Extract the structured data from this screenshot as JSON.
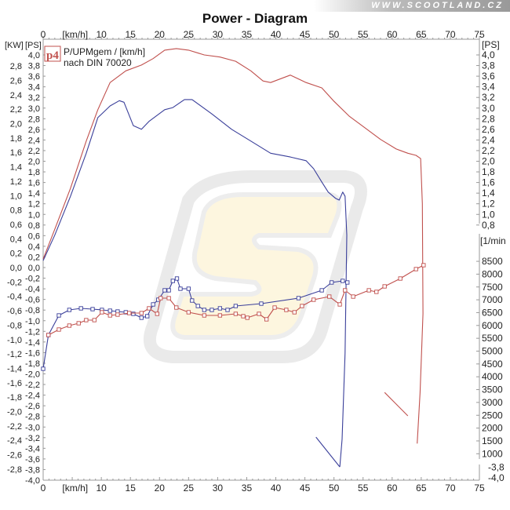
{
  "banner": {
    "text": "WWW.SCOOTLAND.CZ"
  },
  "chart_data": {
    "type": "line",
    "title": "Power - Diagram",
    "legend": {
      "badge": "p4",
      "line1": "P/UPMgem / [km/h]",
      "line2": "nach DIN 70020",
      "placement": "top-left"
    },
    "x_axis": {
      "label": "[km/h]",
      "min": 0,
      "max": 75,
      "tick_labels": [
        "0",
        "10",
        "15",
        "20",
        "25",
        "30",
        "35",
        "40",
        "45",
        "50",
        "55",
        "60",
        "65",
        "70",
        "75"
      ]
    },
    "y_axes": {
      "kw_left": {
        "label": "[KW]",
        "min": -2.8,
        "max": 2.8,
        "step": 0.2
      },
      "ps_left": {
        "label": "[PS]",
        "min": -4.0,
        "max": 4.0,
        "step": 0.2
      },
      "ps_right": {
        "label": "[PS]",
        "upper_ticks": [
          "4,0",
          "3,8",
          "3,6",
          "3,4",
          "3,2",
          "3,0",
          "2,8",
          "2,6",
          "2,4",
          "2,2",
          "2,0",
          "1,8",
          "1,6",
          "1,4",
          "1,2",
          "1,0",
          "0,8"
        ],
        "lower_ticks": [
          "-3,8",
          "-4,0"
        ]
      },
      "rpm_right": {
        "label": "[1/min",
        "min": 1000,
        "max": 8500,
        "ticks": [
          8500,
          8000,
          7500,
          7000,
          6500,
          6000,
          5500,
          5000,
          4500,
          4000,
          3500,
          3000,
          2500,
          2000,
          1500,
          1000
        ]
      }
    },
    "series": [
      {
        "name": "power-red",
        "axis": "ps",
        "color": "#c0504d",
        "x": [
          0,
          2.0,
          4.7,
          7.4,
          9.4,
          11.5,
          14.2,
          16.9,
          18.9,
          20.9,
          22.9,
          25.0,
          27.7,
          30.4,
          33.1,
          35.7,
          37.8,
          39.1,
          42.5,
          45.2,
          47.9,
          49.9,
          52.6,
          55.3,
          58.0,
          60.7,
          62.7,
          64.1,
          64.9,
          65.2,
          65.3,
          64.8,
          64.3
        ],
        "y": [
          0.16,
          0.72,
          1.49,
          2.38,
          2.97,
          3.48,
          3.7,
          3.81,
          3.93,
          4.09,
          4.12,
          4.09,
          4.0,
          3.96,
          3.88,
          3.7,
          3.51,
          3.48,
          3.62,
          3.48,
          3.38,
          3.14,
          2.85,
          2.63,
          2.41,
          2.23,
          2.15,
          2.11,
          2.05,
          1.2,
          -0.87,
          -2.35,
          -3.31
        ]
      },
      {
        "name": "power-red-rundown",
        "axis": "ps",
        "color": "#c0504d",
        "x": [
          62.7,
          58.7
        ],
        "y": [
          -2.79,
          -2.35
        ]
      },
      {
        "name": "power-blue",
        "axis": "ps",
        "color": "#3a3f9a",
        "x": [
          0,
          2.0,
          4.7,
          7.4,
          9.4,
          11.5,
          13.1,
          13.9,
          15.5,
          16.9,
          18.2,
          20.9,
          22.3,
          24.3,
          25.6,
          29.0,
          32.4,
          35.7,
          39.1,
          42.5,
          45.2,
          46.5,
          47.9,
          49.0,
          50.3,
          50.9,
          51.5,
          51.9,
          52.2,
          51.9,
          51.4,
          51.0
        ],
        "y": [
          0.13,
          0.61,
          1.34,
          2.15,
          2.82,
          3.04,
          3.14,
          3.11,
          2.67,
          2.6,
          2.75,
          2.97,
          3.01,
          3.16,
          3.16,
          2.89,
          2.6,
          2.38,
          2.15,
          2.08,
          2.01,
          1.86,
          1.61,
          1.42,
          1.3,
          1.27,
          1.42,
          1.34,
          0.61,
          -1.61,
          -3.23,
          -3.75
        ]
      },
      {
        "name": "power-blue-rundown",
        "axis": "ps",
        "color": "#3a3f9a",
        "x": [
          51.0,
          46.9
        ],
        "y": [
          -3.75,
          -3.19
        ]
      },
      {
        "name": "rpm-blue",
        "axis": "rpm",
        "color": "#3a3f9a",
        "markers": "square",
        "x": [
          0,
          0.9,
          2.7,
          4.5,
          6.5,
          8.5,
          10.1,
          11.5,
          12.8,
          14.2,
          15.5,
          16.9,
          17.9,
          18.9,
          19.8,
          20.9,
          21.6,
          22.3,
          23.0,
          23.6,
          25.0,
          25.6,
          26.6,
          27.7,
          29.0,
          30.4,
          31.7,
          33.1,
          37.5,
          43.9,
          47.9,
          49.6,
          51.5,
          52.3
        ],
        "y": [
          4312,
          5627,
          6391,
          6606,
          6667,
          6636,
          6606,
          6575,
          6544,
          6514,
          6453,
          6300,
          6361,
          6820,
          7003,
          7370,
          7370,
          7737,
          7829,
          7431,
          7431,
          6972,
          6758,
          6606,
          6606,
          6667,
          6606,
          6758,
          6850,
          7064,
          7370,
          7676,
          7737,
          7676
        ]
      },
      {
        "name": "rpm-red",
        "axis": "rpm",
        "color": "#c0504d",
        "markers": "square",
        "x": [
          0.9,
          2.7,
          4.5,
          6.1,
          7.4,
          8.8,
          10.1,
          11.5,
          12.8,
          14.8,
          16.9,
          18.2,
          19.6,
          20.2,
          21.6,
          22.9,
          25.0,
          27.7,
          30.4,
          33.1,
          34.4,
          35.1,
          37.1,
          38.4,
          39.8,
          41.8,
          43.2,
          44.5,
          46.5,
          49.2,
          51.0,
          51.9,
          53.3,
          56.0,
          57.3,
          58.7,
          61.4,
          64.1,
          65.4
        ],
        "y": [
          5627,
          5841,
          5994,
          6086,
          6208,
          6208,
          6514,
          6391,
          6422,
          6483,
          6483,
          6667,
          6453,
          7064,
          7064,
          6697,
          6514,
          6391,
          6391,
          6453,
          6361,
          6300,
          6453,
          6239,
          6697,
          6606,
          6514,
          6758,
          7003,
          7125,
          6820,
          7370,
          7125,
          7370,
          7309,
          7523,
          7829,
          8196,
          8349
        ]
      }
    ]
  }
}
